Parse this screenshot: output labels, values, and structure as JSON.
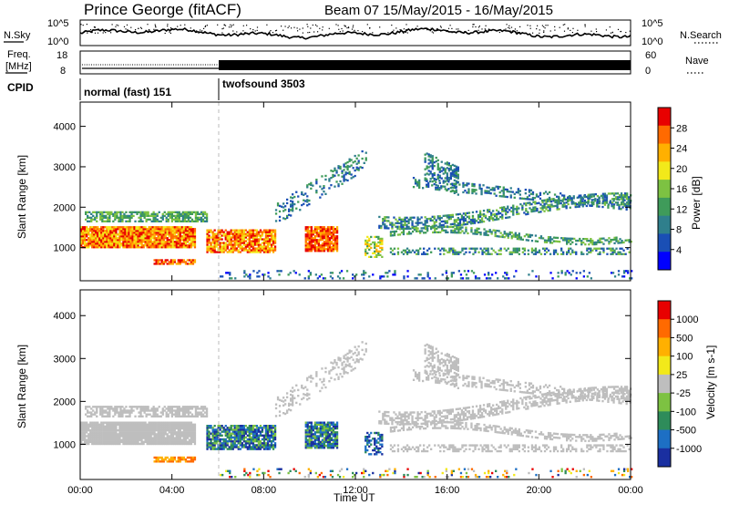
{
  "header": {
    "title": "Prince George (fitACF)",
    "beam_info": "Beam 07  15/May/2015 - 16/May/2015"
  },
  "top_panels": {
    "nsky_label": "N.Sky",
    "nsearch_label": "N.Search",
    "nsky_ticks": [
      "10^5",
      "10^0"
    ],
    "nsearch_ticks": [
      "10^5",
      "10^0"
    ],
    "freq_label_line1": "Freq.",
    "freq_label_line2": "[MHz]",
    "freq_ticks": [
      "18",
      "8"
    ],
    "nave_label": "Nave",
    "nave_ticks": [
      "60",
      "0"
    ],
    "cpid_label": "CPID",
    "cpid_modes": [
      {
        "name": "normal (fast) 151",
        "start_hour": 0,
        "end_hour": 6.0
      },
      {
        "name": "twofsound 3503",
        "start_hour": 6.0,
        "end_hour": 24.0
      }
    ]
  },
  "chart_data": [
    {
      "type": "heatmap",
      "panel": "power",
      "ylabel": "Slant Range [km]",
      "xlabel": "Time UT",
      "x_ticks": [
        "00:00",
        "04:00",
        "08:00",
        "12:00",
        "16:00",
        "20:00",
        "00:00"
      ],
      "y_ticks": [
        "1000",
        "2000",
        "3000",
        "4000"
      ],
      "xlim_hours": [
        0,
        24
      ],
      "ylim_km": [
        180,
        4600
      ],
      "colorbar_label": "Power [dB]",
      "colorbar_ticks": [
        "28",
        "24",
        "20",
        "16",
        "12",
        "8",
        "4"
      ],
      "colorbar_colors": [
        "#0000ff",
        "#1a4fb5",
        "#2f7f8c",
        "#3f9b5a",
        "#7dc242",
        "#f2e91a",
        "#ffb000",
        "#ff6a00",
        "#e80000"
      ],
      "colorbar_range": [
        0,
        30
      ]
    },
    {
      "type": "heatmap",
      "panel": "velocity",
      "ylabel": "Slant Range [km]",
      "xlabel": "Time UT",
      "x_ticks": [
        "00:00",
        "04:00",
        "08:00",
        "12:00",
        "16:00",
        "20:00",
        "00:00"
      ],
      "y_ticks": [
        "1000",
        "2000",
        "3000",
        "4000"
      ],
      "xlim_hours": [
        0,
        24
      ],
      "ylim_km": [
        180,
        4600
      ],
      "colorbar_label": "Velocity [m s-1]",
      "colorbar_ticks": [
        "1000",
        "500",
        "100",
        "25",
        "-25",
        "-100",
        "-500",
        "-1000"
      ],
      "colorbar_colors": [
        "#1a2fa0",
        "#1d6fc4",
        "#2e8c5a",
        "#7dc242",
        "#bebebe",
        "#f2e91a",
        "#ffb000",
        "#ff6a00",
        "#e80000"
      ]
    }
  ]
}
